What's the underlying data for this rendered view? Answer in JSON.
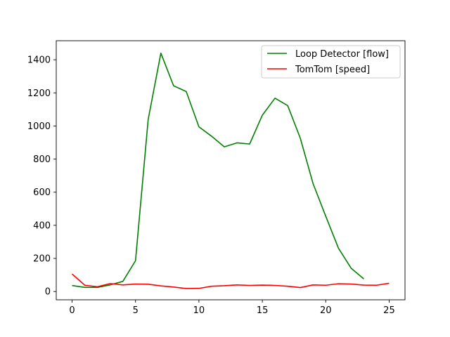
{
  "chart_data": {
    "type": "line",
    "title": "",
    "xlabel": "",
    "ylabel": "",
    "xlim": [
      -1.25,
      26.25
    ],
    "ylim": [
      -50,
      1515
    ],
    "xticks": [
      0,
      5,
      10,
      15,
      20,
      25
    ],
    "yticks": [
      0,
      200,
      400,
      600,
      800,
      1000,
      1200,
      1400
    ],
    "grid": false,
    "legend_position": "top-right",
    "series": [
      {
        "name": "Loop Detector [flow]",
        "color": "#008000",
        "x": [
          0,
          1,
          2,
          3,
          4,
          5,
          6,
          7,
          8,
          9,
          10,
          11,
          12,
          13,
          14,
          15,
          16,
          17,
          18,
          19,
          20,
          21,
          22,
          23
        ],
        "y": [
          36,
          25,
          25,
          40,
          61,
          186,
          1040,
          1440,
          1243,
          1208,
          995,
          938,
          874,
          898,
          891,
          1065,
          1168,
          1123,
          925,
          652,
          455,
          262,
          141,
          76
        ]
      },
      {
        "name": "TomTom [speed]",
        "color": "#ff0000",
        "x": [
          0,
          1,
          2,
          3,
          4,
          5,
          6,
          7,
          8,
          9,
          10,
          11,
          12,
          13,
          14,
          15,
          16,
          17,
          18,
          19,
          20,
          21,
          22,
          23,
          24,
          25
        ],
        "y": [
          106,
          38,
          29,
          48,
          40,
          45,
          44,
          34,
          27,
          18,
          19,
          32,
          35,
          40,
          37,
          39,
          37,
          32,
          24,
          40,
          38,
          47,
          45,
          39,
          38,
          50
        ]
      }
    ]
  }
}
